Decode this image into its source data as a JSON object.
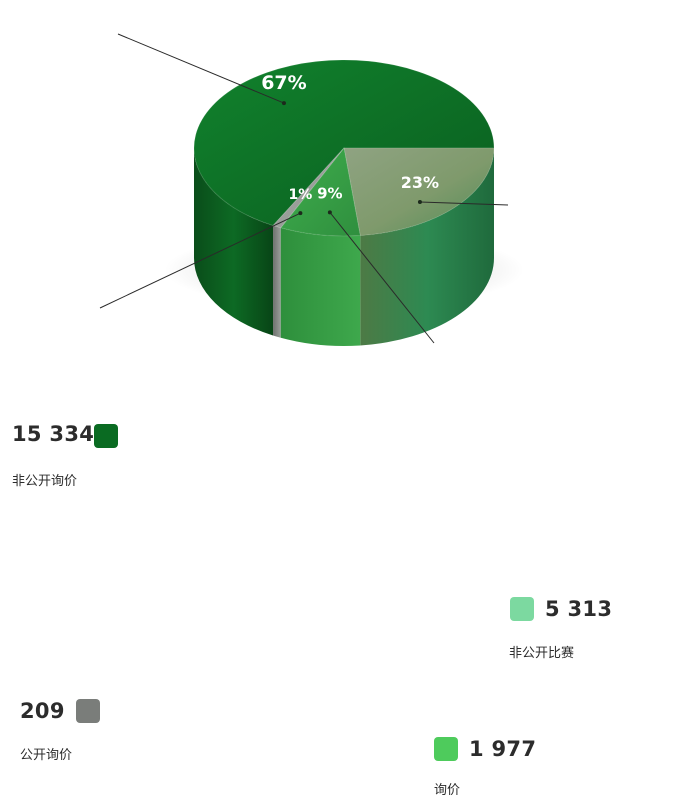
{
  "chart_data": {
    "type": "pie",
    "style": "3d",
    "title": "",
    "categories": [
      "非公开询价",
      "非公开比赛",
      "询价",
      "公开询价"
    ],
    "values": [
      15334,
      5313,
      1977,
      209
    ],
    "value_labels": [
      "15 334",
      "5 313",
      "1 977",
      "209"
    ],
    "percent_labels": [
      "67%",
      "23%",
      "9%",
      "1%"
    ],
    "colors": [
      "#0a6b22",
      "#7cd9a0",
      "#4ecb5c",
      "#7a7d7a"
    ],
    "legend": "callouts with leader lines"
  }
}
